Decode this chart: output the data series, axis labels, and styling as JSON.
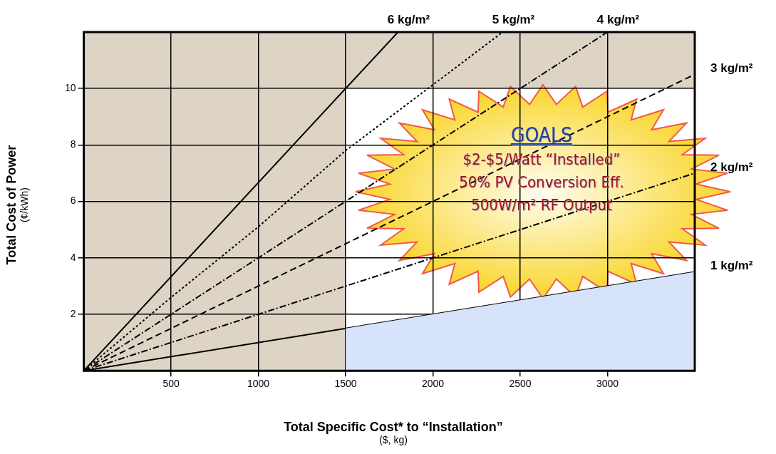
{
  "chart_data": {
    "type": "line",
    "xlabel": "Total Specific Cost* to “Installation”\n($, kg)",
    "ylabel": "Total Cost of Power\n(¢/kWh)",
    "xlim": [
      0,
      3500
    ],
    "xticks": [
      500,
      1000,
      1500,
      2000,
      2500,
      3000
    ],
    "ylim": [
      0,
      12
    ],
    "yticks": [
      2,
      4,
      6,
      8,
      10
    ],
    "grid": true,
    "legend": false,
    "marker": "none",
    "bands": [
      {
        "axis": "x",
        "from": 0,
        "to": 1500,
        "color": "#ddd4c6"
      },
      {
        "axis": "y",
        "from": 10,
        "to": 12,
        "color": "#ddd4c6"
      }
    ],
    "series": [
      {
        "type": "area",
        "color": "#d7e2fb",
        "x": [
          1500,
          3500
        ],
        "values": [
          1.5,
          3.5
        ]
      },
      {
        "name": "6 kg/m²",
        "color": "#000000",
        "line_style": "solid",
        "x": [
          0,
          1800
        ],
        "values": [
          0,
          12
        ]
      },
      {
        "name": "5 kg/m²",
        "color": "#000000",
        "line_style": "dotted",
        "x": [
          0,
          500,
          1000,
          1500,
          2400
        ],
        "values": [
          0,
          2.6,
          5.1,
          7.8,
          12
        ]
      },
      {
        "name": "4 kg/m²",
        "color": "#000000",
        "line_style": "dashdot",
        "x": [
          0,
          3000
        ],
        "values": [
          0,
          12
        ]
      },
      {
        "name": "3 kg/m²",
        "color": "#000000",
        "line_style": "dashed",
        "x": [
          0,
          3500
        ],
        "values": [
          0,
          10.5
        ]
      },
      {
        "name": "2 kg/m²",
        "color": "#000000",
        "line_style": "dashdot",
        "x": [
          0,
          3500
        ],
        "values": [
          0,
          7
        ]
      },
      {
        "name": "1 kg/m²",
        "color": "#000000",
        "line_style": "solid",
        "x": [
          0,
          3500
        ],
        "values": [
          0,
          3.5
        ]
      }
    ],
    "annotations": [
      "GOALS",
      "$2-$5/Watt “Installed”",
      "50% PV Conversion Eff.",
      "500W/m² RF Output"
    ]
  }
}
